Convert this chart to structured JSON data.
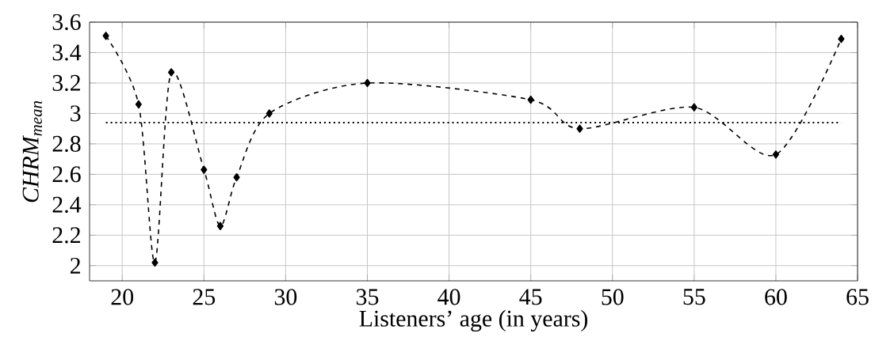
{
  "chart_data": {
    "type": "line",
    "xlabel": "Listeners’ age (in years)",
    "ylabel": "CHRM$_{mean}$",
    "x": [
      19,
      21,
      22,
      23,
      25,
      26,
      27,
      29,
      35,
      45,
      48,
      55,
      60,
      64
    ],
    "values": [
      3.51,
      3.06,
      2.02,
      3.27,
      2.63,
      2.26,
      2.58,
      3.0,
      3.2,
      3.09,
      2.9,
      3.04,
      2.73,
      3.49
    ],
    "color": "#000000",
    "marker": "diamond",
    "line_style": "dashed",
    "xlim": [
      18,
      65
    ],
    "ylim": [
      1.9,
      3.6
    ],
    "xticks": [
      20,
      25,
      30,
      35,
      40,
      45,
      50,
      55,
      60,
      65
    ],
    "yticks": [
      2,
      2.2,
      2.4,
      2.6,
      2.8,
      3,
      3.2,
      3.4,
      3.6
    ],
    "grid": true,
    "ref_lines": [
      {
        "axis": "y",
        "value": 2.94,
        "line_style": "dotted"
      }
    ]
  }
}
